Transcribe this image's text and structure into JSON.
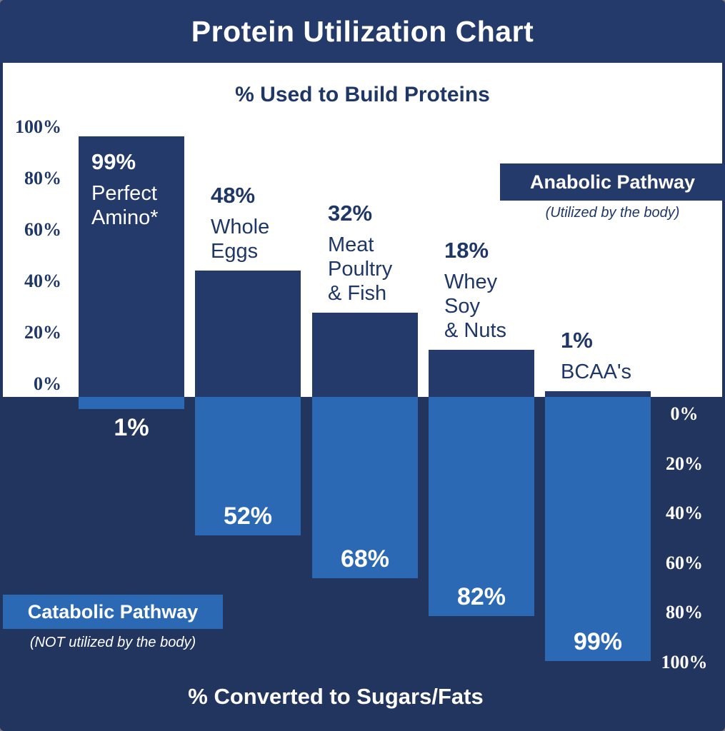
{
  "title": "Protein Utilization Chart",
  "colors": {
    "navy": "#243A6B",
    "navy_background": "#22355F",
    "light_blue": "#2B69B4",
    "navy_text": "#1F3766",
    "white": "#FFFFFF"
  },
  "chart_data": {
    "type": "bar",
    "title": "Protein Utilization Chart",
    "categories": [
      "Perfect Amino*",
      "Whole Eggs",
      "Meat Poultry & Fish",
      "Whey Soy & Nuts",
      "BCAA's"
    ],
    "category_label_lines": [
      [
        "Perfect",
        "Amino*"
      ],
      [
        "Whole",
        "Eggs"
      ],
      [
        "Meat",
        "Poultry",
        "& Fish"
      ],
      [
        "Whey",
        "Soy",
        "& Nuts"
      ],
      [
        "BCAA's"
      ]
    ],
    "series": [
      {
        "name": "% Used to Build Proteins",
        "pathway": "Anabolic Pathway",
        "values": [
          99,
          48,
          32,
          18,
          1
        ]
      },
      {
        "name": "% Converted to Sugars/Fats",
        "pathway": "Catabolic Pathway",
        "values": [
          1,
          52,
          68,
          82,
          99
        ]
      }
    ],
    "top_axis": {
      "label": "% Used to Build Proteins",
      "ticks": [
        "100%",
        "80%",
        "60%",
        "40%",
        "20%",
        "0%"
      ],
      "range": [
        0,
        100
      ],
      "grid": false
    },
    "bottom_axis": {
      "label": "% Converted to Sugars/Fats",
      "ticks": [
        "0%",
        "20%",
        "40%",
        "60%",
        "80%",
        "100%"
      ],
      "range": [
        0,
        100
      ],
      "grid": false
    },
    "legend": [
      {
        "label": "Anabolic Pathway",
        "note": "(Utilized by the body)",
        "position": "top-right"
      },
      {
        "label": "Catabolic Pathway",
        "note": "(NOT utilized by the body)",
        "position": "bottom-left"
      }
    ]
  }
}
